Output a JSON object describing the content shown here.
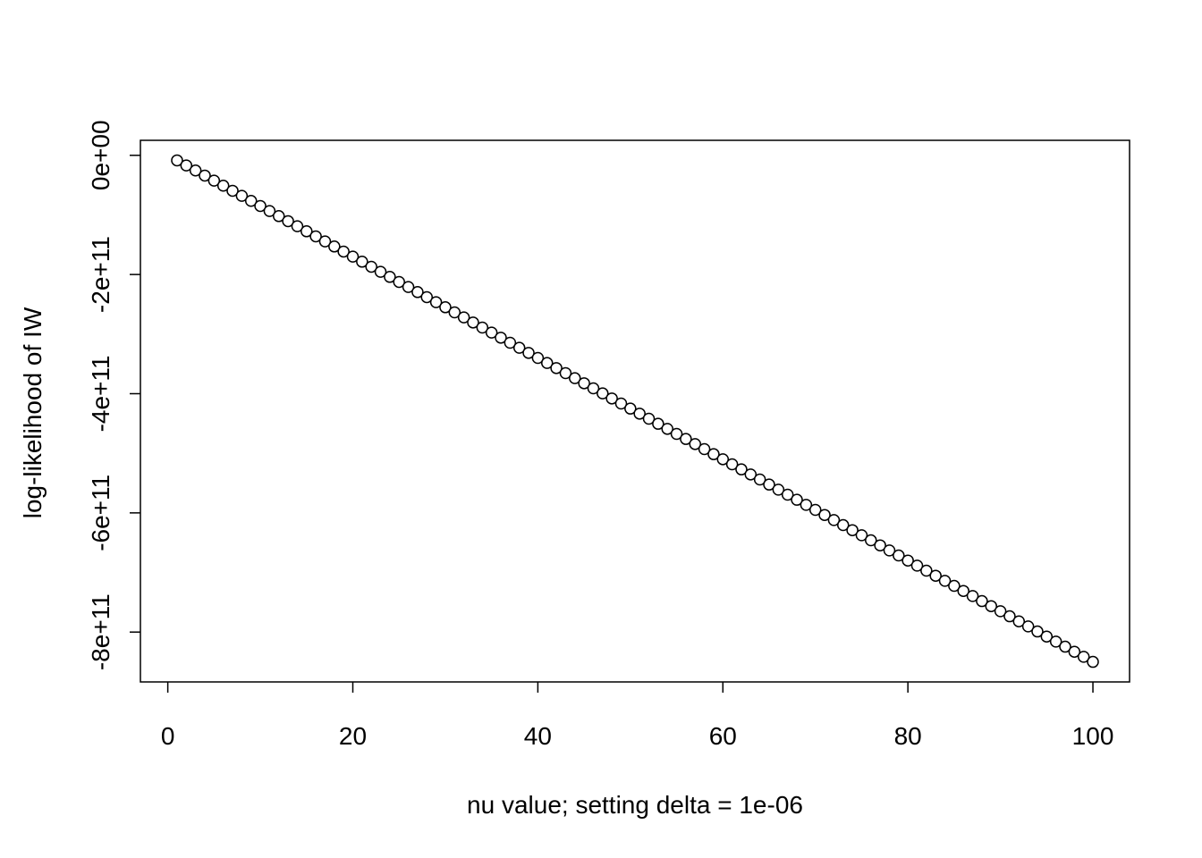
{
  "chart_data": {
    "type": "scatter",
    "x_label": "nu value; setting delta = 1e-06",
    "y_label": "log-likelihood of IW",
    "x": [
      1,
      2,
      3,
      4,
      5,
      6,
      7,
      8,
      9,
      10,
      11,
      12,
      13,
      14,
      15,
      16,
      17,
      18,
      19,
      20,
      21,
      22,
      23,
      24,
      25,
      26,
      27,
      28,
      29,
      30,
      31,
      32,
      33,
      34,
      35,
      36,
      37,
      38,
      39,
      40,
      41,
      42,
      43,
      44,
      45,
      46,
      47,
      48,
      49,
      50,
      51,
      52,
      53,
      54,
      55,
      56,
      57,
      58,
      59,
      60,
      61,
      62,
      63,
      64,
      65,
      66,
      67,
      68,
      69,
      70,
      71,
      72,
      73,
      74,
      75,
      76,
      77,
      78,
      79,
      80,
      81,
      82,
      83,
      84,
      85,
      86,
      87,
      88,
      89,
      90,
      91,
      92,
      93,
      94,
      95,
      96,
      97,
      98,
      99,
      100
    ],
    "y": [
      -8500000000.0,
      -17000000000.0,
      -25500000000.0,
      -34000000000.0,
      -42500000000.0,
      -51000000000.0,
      -59500000000.0,
      -68000000000.0,
      -76500000000.0,
      -85000000000.0,
      -93500000000.0,
      -102000000000.0,
      -110500000000.0,
      -119000000000.0,
      -127500000000.0,
      -136000000000.0,
      -144500000000.0,
      -153000000000.0,
      -161500000000.0,
      -170000000000.0,
      -178500000000.0,
      -187000000000.0,
      -195500000000.0,
      -204000000000.0,
      -212500000000.0,
      -221000000000.0,
      -229500000000.0,
      -238000000000.0,
      -246500000000.0,
      -255000000000.0,
      -263500000000.0,
      -272000000000.0,
      -280500000000.0,
      -289000000000.0,
      -297500000000.0,
      -306000000000.0,
      -314500000000.0,
      -323000000000.0,
      -331500000000.0,
      -340000000000.0,
      -348500000000.0,
      -357000000000.0,
      -365500000000.0,
      -374000000000.0,
      -382500000000.0,
      -391000000000.0,
      -399500000000.0,
      -408000000000.0,
      -416500000000.0,
      -425000000000.0,
      -433500000000.0,
      -442000000000.0,
      -450500000000.0,
      -459000000000.0,
      -467500000000.0,
      -476000000000.0,
      -484500000000.0,
      -493000000000.0,
      -501500000000.0,
      -510000000000.0,
      -518500000000.0,
      -527000000000.0,
      -535500000000.0,
      -544000000000.0,
      -552500000000.0,
      -561000000000.0,
      -569500000000.0,
      -578000000000.0,
      -586500000000.0,
      -595000000000.0,
      -603500000000.0,
      -612000000000.0,
      -620500000000.0,
      -629000000000.0,
      -637500000000.0,
      -646000000000.0,
      -654500000000.0,
      -663000000000.0,
      -671500000000.0,
      -680000000000.0,
      -688500000000.0,
      -697000000000.0,
      -705500000000.0,
      -714000000000.0,
      -722500000000.0,
      -731000000000.0,
      -739500000000.0,
      -748000000000.0,
      -756500000000.0,
      -765000000000.0,
      -773500000000.0,
      -782000000000.0,
      -790500000000.0,
      -799000000000.0,
      -807500000000.0,
      -816000000000.0,
      -824500000000.0,
      -833000000000.0,
      -841500000000.0,
      -850000000000.0
    ],
    "color": "#000000",
    "xlim": [
      -2.96,
      103.96
    ],
    "ylim": [
      -883660000000.0,
      25160000000.0
    ],
    "xticks": [
      0,
      20,
      40,
      60,
      80,
      100
    ],
    "yticks": [
      {
        "value": 0,
        "label": "0e+00"
      },
      {
        "value": -200000000000.0,
        "label": "-2e+11"
      },
      {
        "value": -400000000000.0,
        "label": "-4e+11"
      },
      {
        "value": -600000000000.0,
        "label": "-6e+11"
      },
      {
        "value": -800000000000.0,
        "label": "-8e+11"
      }
    ]
  }
}
